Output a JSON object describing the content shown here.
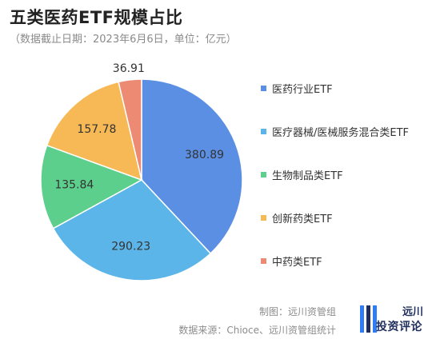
{
  "header": {
    "title": "五类医药ETF规模占比",
    "subtitle": "（数据截止日期：2023年6月6日，单位：亿元）"
  },
  "chart_data": {
    "type": "pie",
    "title": "五类医药ETF规模占比",
    "subtitle": "（数据截止日期：2023年6月6日，单位：亿元）",
    "unit": "亿元",
    "legend_position": "right",
    "slices": [
      {
        "label": "医药行业ETF",
        "value": 380.89,
        "color": "#5b8fe3"
      },
      {
        "label": "医疗器械/医械服务混合类ETF",
        "value": 290.23,
        "color": "#5cb5e8"
      },
      {
        "label": "生物制品类ETF",
        "value": 135.84,
        "color": "#5dcf8c"
      },
      {
        "label": "创新药类ETF",
        "value": 157.78,
        "color": "#f7b955"
      },
      {
        "label": "中药类ETF",
        "value": 36.91,
        "color": "#ec8a74"
      }
    ]
  },
  "footer": {
    "credit": "制图：远川资管组",
    "source": "数据来源：Chioce、远川资管组统计"
  },
  "logo": {
    "name": "远川",
    "subtitle": "投资评论"
  }
}
